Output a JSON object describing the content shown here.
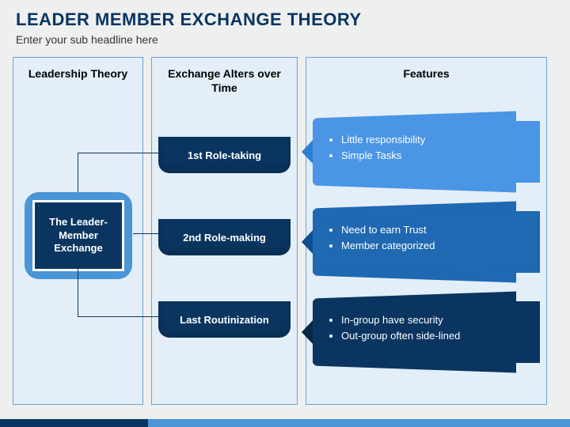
{
  "header": {
    "title": "LEADER MEMBER EXCHANGE THEORY",
    "subtitle": "Enter your sub headline here",
    "title_color": "#0a3560",
    "subtitle_color": "#333333"
  },
  "columns": {
    "col1": {
      "title": "Leadership Theory"
    },
    "col2": {
      "title": "Exchange Alters over Time"
    },
    "col3": {
      "title": "Features"
    },
    "border_color": "#6aa3d6",
    "background_color": "#e3eef8"
  },
  "hub": {
    "label": "The Leader-Member Exchange",
    "outer_color": "#4a95d5",
    "inner_color": "#0a3560"
  },
  "stages": [
    {
      "label": "1st Role-taking",
      "color": "#0a3560"
    },
    {
      "label": "2nd Role-making",
      "color": "#0a3560"
    },
    {
      "label": "Last Routinization",
      "color": "#0a3560"
    }
  ],
  "features": [
    {
      "items": [
        "Little responsibility",
        "Simple Tasks"
      ],
      "color": "#4a95e5",
      "accent": "#2e7dd1"
    },
    {
      "items": [
        "Need to earn Trust",
        "Member categorized"
      ],
      "color": "#1f68b2",
      "accent": "#0d4e90"
    },
    {
      "items": [
        "In-group have security",
        "Out-group often side-lined"
      ],
      "color": "#0a3560",
      "accent": "#062844"
    }
  ],
  "footer": {
    "left_color": "#0a3560",
    "right_color": "#4a95d5"
  }
}
